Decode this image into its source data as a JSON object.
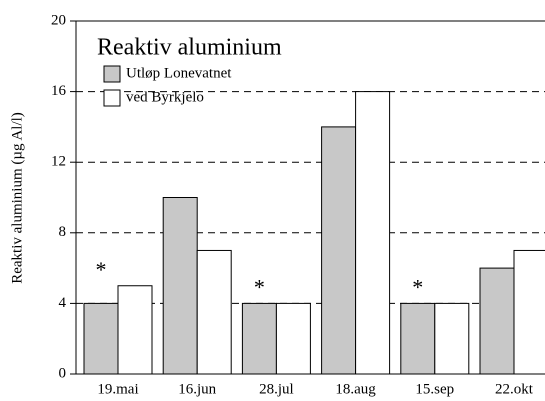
{
  "chart_data": {
    "type": "bar",
    "title": "Reaktiv aluminium",
    "y_label": "Reaktiv aluminium (µg Al/l)",
    "categories": [
      "19.mai",
      "16.jun",
      "28.jul",
      "18.aug",
      "15.sep",
      "22.okt"
    ],
    "series": [
      {
        "name": "Utløp Lonevatnet",
        "color": "#c8c8c8",
        "values": [
          4,
          10,
          4,
          14,
          4,
          6
        ]
      },
      {
        "name": "ved Byrkjelo",
        "color": "#ffffff",
        "values": [
          5,
          7,
          4,
          16,
          4,
          7
        ]
      }
    ],
    "annotations": [
      {
        "text": "*",
        "category": "19.mai"
      },
      {
        "text": "*",
        "category": "28.jul"
      },
      {
        "text": "*",
        "category": "15.sep"
      }
    ],
    "ylim": [
      0,
      20
    ],
    "yticks": [
      0,
      4,
      8,
      12,
      16,
      20
    ],
    "grid": true,
    "legend": "upper left"
  }
}
